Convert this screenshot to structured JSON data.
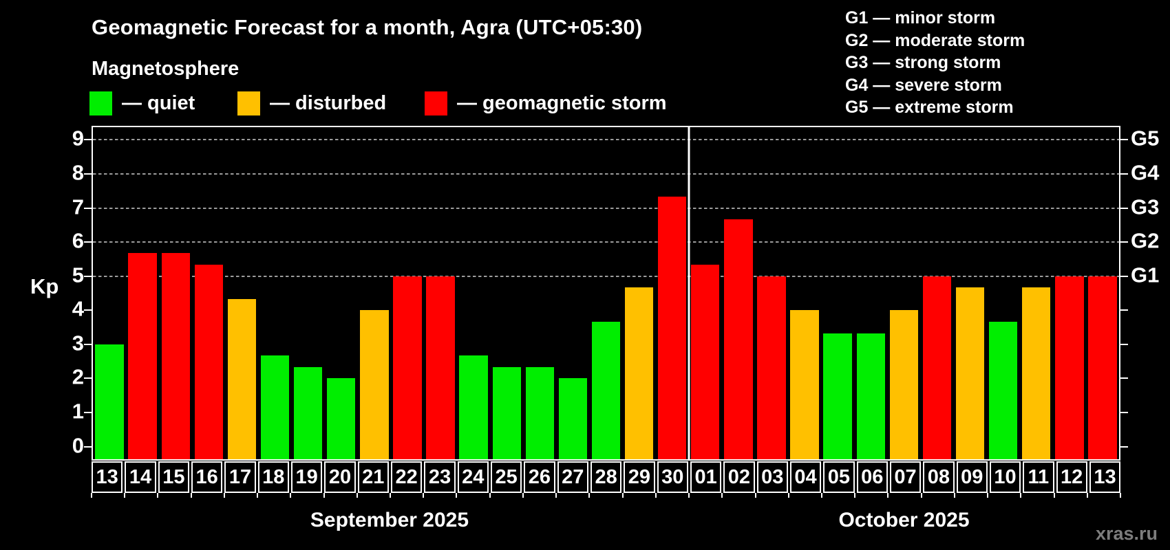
{
  "title": "Geomagnetic Forecast for a month, Agra (UTC+05:30)",
  "subtitle": "Magnetosphere",
  "bar_legend": [
    {
      "status": "quiet",
      "label": "— quiet"
    },
    {
      "status": "disturbed",
      "label": "— disturbed"
    },
    {
      "status": "storm",
      "label": "— geomagnetic storm"
    }
  ],
  "g_scale_legend": [
    "G1 — minor storm",
    "G2 — moderate storm",
    "G3 — strong storm",
    "G4 — severe storm",
    "G5 — extreme storm"
  ],
  "watermark": "xras.ru",
  "chart_data": {
    "type": "bar",
    "title": "Geomagnetic Forecast for a month, Agra (UTC+05:30)",
    "ylabel": "Kp",
    "x": [
      "13",
      "14",
      "15",
      "16",
      "17",
      "18",
      "19",
      "20",
      "21",
      "22",
      "23",
      "24",
      "25",
      "26",
      "27",
      "28",
      "29",
      "30",
      "01",
      "02",
      "03",
      "04",
      "05",
      "06",
      "07",
      "08",
      "09",
      "10",
      "11",
      "12",
      "13"
    ],
    "series": [
      {
        "name": "Kp index forecast",
        "values": [
          3,
          5.67,
          5.67,
          5.33,
          4.33,
          2.67,
          2.33,
          2,
          4,
          5,
          5,
          2.67,
          2.33,
          2.33,
          2,
          3.67,
          4.67,
          7.33,
          5.33,
          6.67,
          5,
          4,
          3.33,
          3.33,
          4,
          5,
          4.67,
          3.67,
          4.67,
          5,
          5
        ]
      }
    ],
    "status": [
      "quiet",
      "storm",
      "storm",
      "storm",
      "disturbed",
      "quiet",
      "quiet",
      "quiet",
      "disturbed",
      "storm",
      "storm",
      "quiet",
      "quiet",
      "quiet",
      "quiet",
      "quiet",
      "disturbed",
      "storm",
      "storm",
      "storm",
      "storm",
      "disturbed",
      "quiet",
      "quiet",
      "disturbed",
      "storm",
      "disturbed",
      "quiet",
      "disturbed",
      "storm",
      "storm"
    ],
    "colors": {
      "quiet": "#00ee00",
      "disturbed": "#ffc000",
      "storm": "#ff0000"
    },
    "axis": {
      "kp_min": -0.37,
      "kp_max": 9.37,
      "y_ticks": [
        0,
        1,
        2,
        3,
        4,
        5,
        6,
        7,
        8,
        9
      ],
      "gridlines": [
        5,
        6,
        7,
        8,
        9
      ],
      "g_ticks": [
        {
          "kp": 5,
          "label": "G1"
        },
        {
          "kp": 6,
          "label": "G2"
        },
        {
          "kp": 7,
          "label": "G3"
        },
        {
          "kp": 8,
          "label": "G4"
        },
        {
          "kp": 9,
          "label": "G5"
        }
      ]
    },
    "months": [
      {
        "label": "September 2025",
        "start_index": 0,
        "days": 18
      },
      {
        "label": "October 2025",
        "start_index": 18,
        "days": 13
      }
    ],
    "legend_position": "top-left and top-right",
    "grid": "horizontal dashed lines at Kp 5-9"
  }
}
